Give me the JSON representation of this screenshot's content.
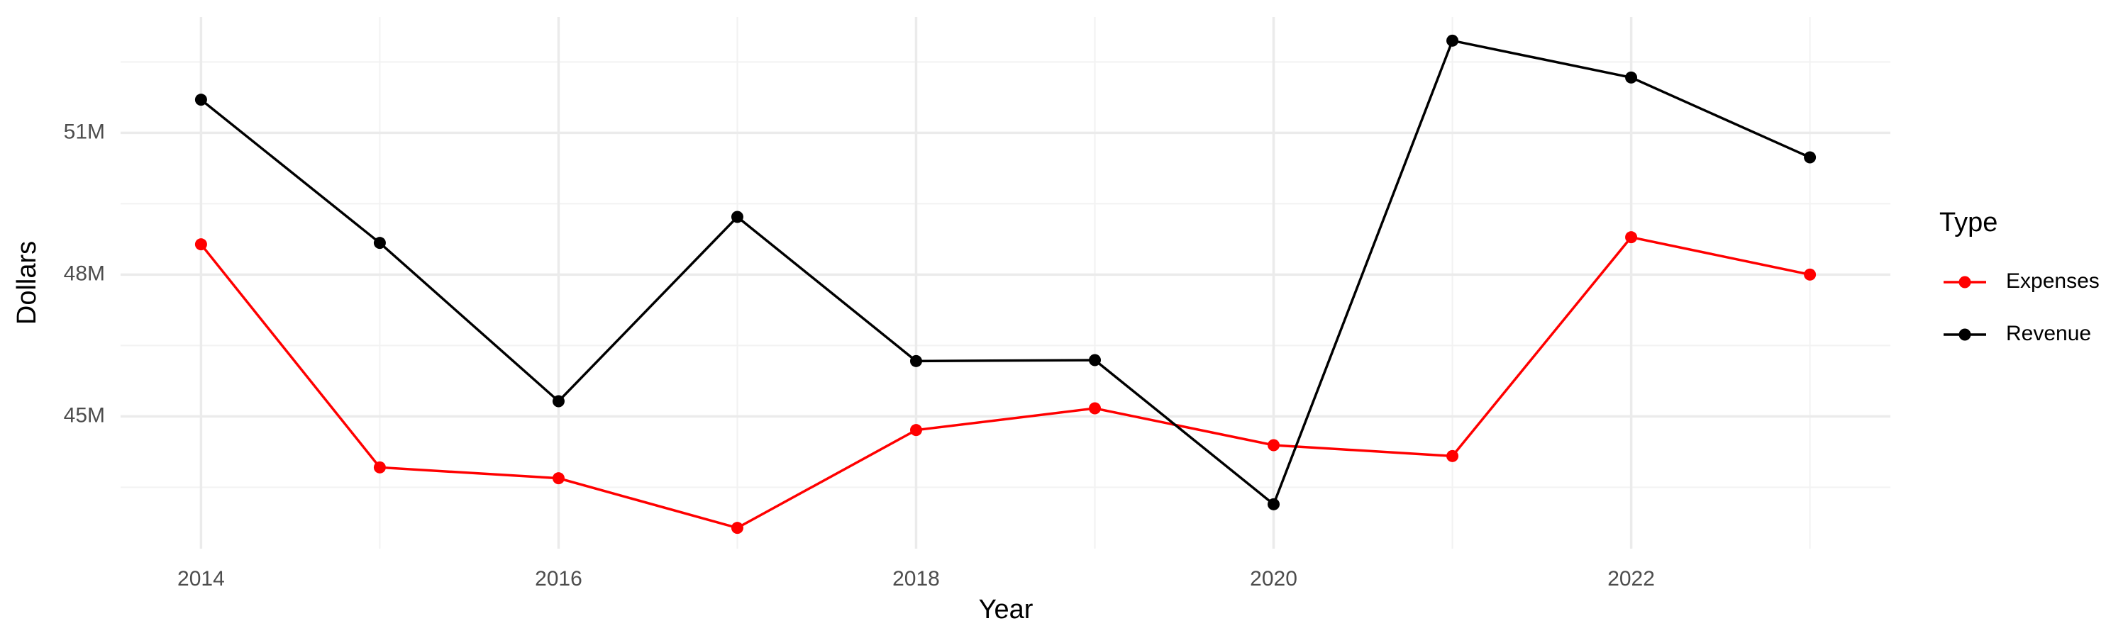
{
  "chart_data": {
    "type": "line",
    "x_label": "Year",
    "y_label": "Dollars",
    "legend_title": "Type",
    "legend_position": "right",
    "x": [
      2014,
      2015,
      2016,
      2017,
      2018,
      2019,
      2020,
      2021,
      2022,
      2023
    ],
    "series": [
      {
        "name": "Expenses",
        "color": "#ff0000",
        "values": [
          48640000,
          43920000,
          43690000,
          42640000,
          44710000,
          45170000,
          44390000,
          44160000,
          48790000,
          48000000
        ]
      },
      {
        "name": "Revenue",
        "color": "#000000",
        "values": [
          51700000,
          48670000,
          45320000,
          49220000,
          46170000,
          46190000,
          43140000,
          52950000,
          52170000,
          50480000
        ]
      }
    ],
    "xlim": [
      2013.55,
      2023.45
    ],
    "xticks": [
      2014,
      2016,
      2018,
      2020,
      2022
    ],
    "x_minor_ticks": [
      2015,
      2017,
      2019,
      2021,
      2023
    ],
    "ylim": [
      42200000,
      53450000
    ],
    "yticks": [
      {
        "value": 45000000,
        "label": "45M"
      },
      {
        "value": 48000000,
        "label": "48M"
      },
      {
        "value": 51000000,
        "label": "51M"
      }
    ],
    "y_minor_ticks": [
      43500000,
      46500000,
      49500000,
      52500000
    ],
    "grid": true
  }
}
